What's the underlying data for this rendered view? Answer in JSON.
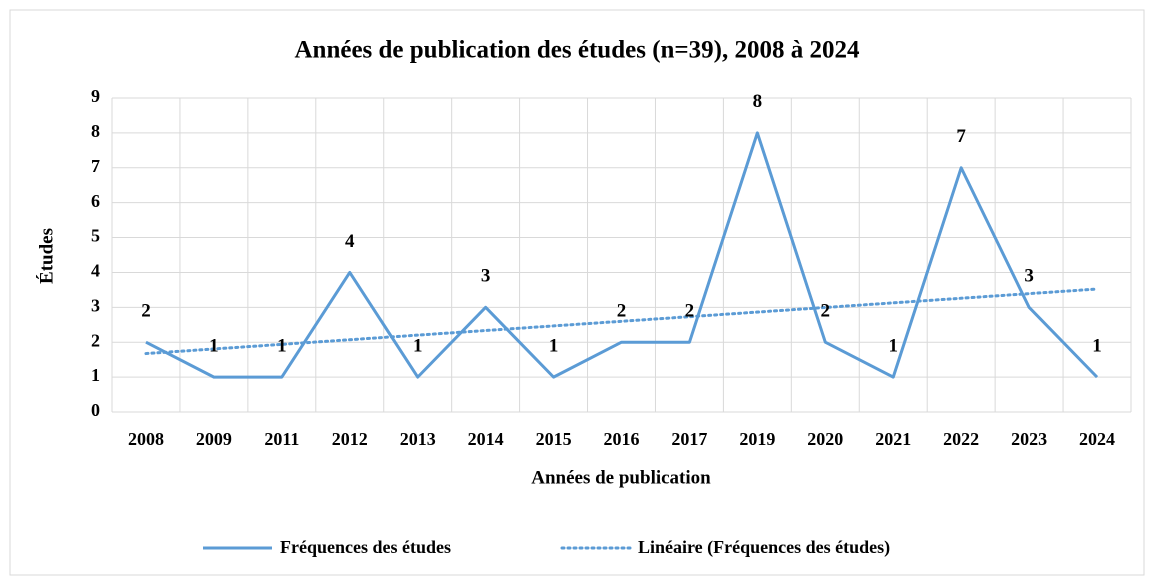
{
  "chart_data": {
    "type": "line",
    "title": "Années de publication des études (n=39), 2008 à 2024",
    "x_label": "Années de publication",
    "y_label": "Études",
    "categories": [
      "2008",
      "2009",
      "2011",
      "2012",
      "2013",
      "2014",
      "2015",
      "2016",
      "2017",
      "2019",
      "2020",
      "2021",
      "2022",
      "2023",
      "2024"
    ],
    "series": [
      {
        "name": "Fréquences des études",
        "color": "#5b9bd5",
        "values": [
          2,
          1,
          1,
          4,
          1,
          3,
          1,
          2,
          2,
          8,
          2,
          1,
          7,
          3,
          1
        ]
      }
    ],
    "trendline": {
      "name": "Linéaire (Fréquences des études)",
      "kind": "linear",
      "color": "#5b9bd5"
    },
    "data_labels": true,
    "ylim": [
      0,
      9
    ],
    "yticks": [
      0,
      1,
      2,
      3,
      4,
      5,
      6,
      7,
      8,
      9
    ],
    "grid": true,
    "legend": "bottom"
  }
}
